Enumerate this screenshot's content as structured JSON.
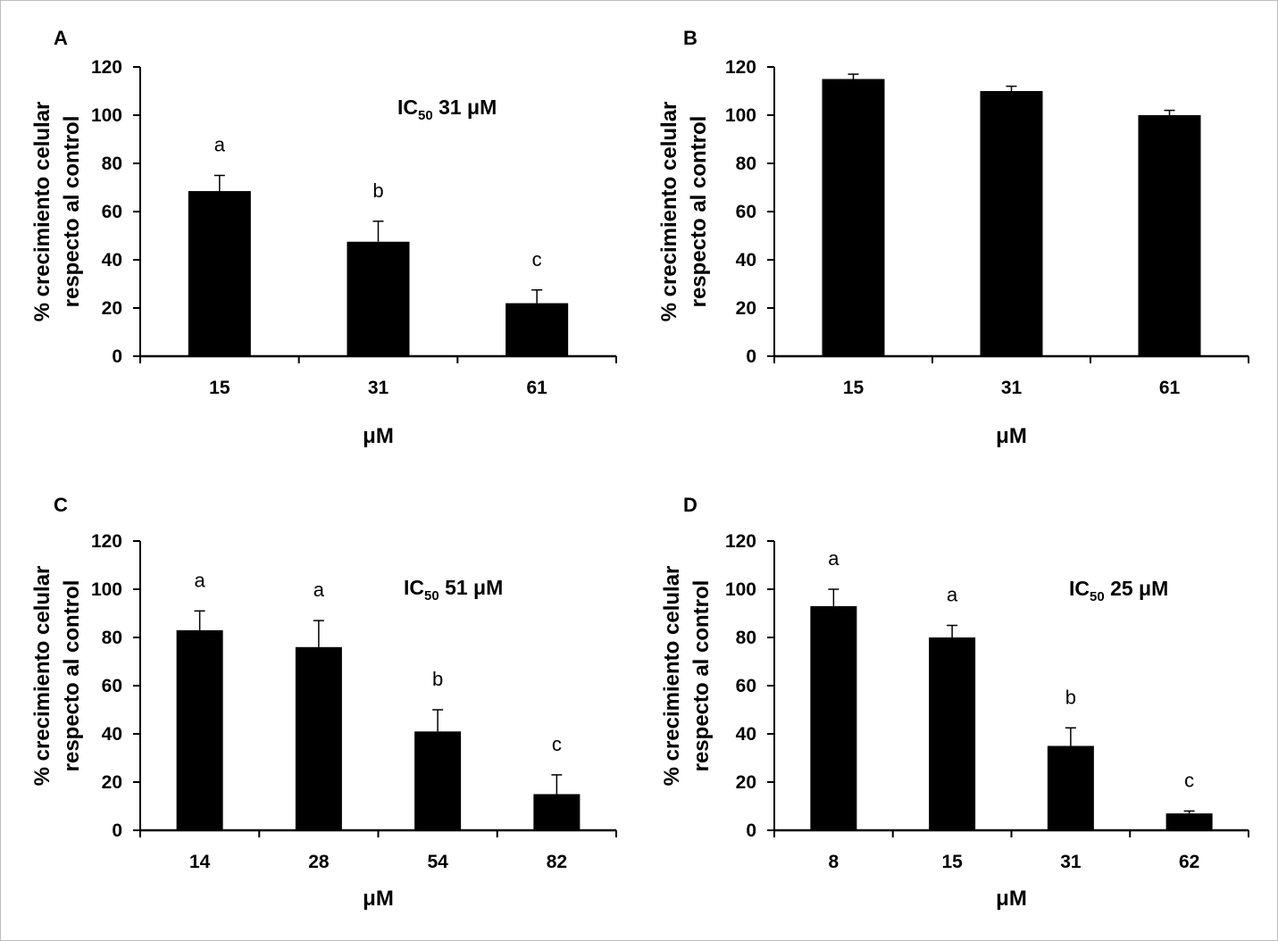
{
  "figure": {
    "colors": {
      "bar": "#000000",
      "axis": "#000000",
      "frame": "#bdbdbd"
    }
  },
  "chart_data": [
    {
      "panel": "A",
      "type": "bar",
      "ylabel_line1": "% crecimiento celular",
      "ylabel_line2": "respecto al control",
      "xlabel": "μM",
      "categories": [
        "15",
        "31",
        "61"
      ],
      "values": [
        68.5,
        47.5,
        22
      ],
      "errors": [
        6.5,
        8.5,
        5.5
      ],
      "sig_letters": [
        "a",
        "b",
        "c"
      ],
      "ic50": {
        "prefix": "IC",
        "sub": "50",
        "value": " 31 μM"
      },
      "ylim": [
        0,
        120
      ],
      "yticks": [
        "0",
        "20",
        "40",
        "60",
        "80",
        "100",
        "120"
      ]
    },
    {
      "panel": "B",
      "type": "bar",
      "ylabel_line1": "% crecimiento celular",
      "ylabel_line2": "respecto al control",
      "xlabel": "μM",
      "categories": [
        "15",
        "31",
        "61"
      ],
      "values": [
        115,
        110,
        100
      ],
      "errors": [
        2,
        2,
        2
      ],
      "sig_letters": [],
      "ylim": [
        0,
        120
      ],
      "yticks": [
        "0",
        "20",
        "40",
        "60",
        "80",
        "100",
        "120"
      ]
    },
    {
      "panel": "C",
      "type": "bar",
      "ylabel_line1": "% crecimiento celular",
      "ylabel_line2": "respecto al control",
      "xlabel": "μM",
      "categories": [
        "14",
        "28",
        "54",
        "82"
      ],
      "values": [
        83,
        76,
        41,
        15
      ],
      "errors": [
        8,
        11,
        9,
        8
      ],
      "sig_letters": [
        "a",
        "a",
        "b",
        "c"
      ],
      "ic50": {
        "prefix": "IC",
        "sub": "50",
        "value": " 51 μM"
      },
      "ylim": [
        0,
        120
      ],
      "yticks": [
        "0",
        "20",
        "40",
        "60",
        "80",
        "100",
        "120"
      ]
    },
    {
      "panel": "D",
      "type": "bar",
      "ylabel_line1": "% crecimiento celular",
      "ylabel_line2": "respecto al control",
      "xlabel": "μM",
      "categories": [
        "8",
        "15",
        "31",
        "62"
      ],
      "values": [
        93,
        80,
        35,
        7
      ],
      "errors": [
        7,
        5,
        7.5,
        1
      ],
      "sig_letters": [
        "a",
        "a",
        "b",
        "c"
      ],
      "ic50": {
        "prefix": "IC",
        "sub": "50",
        "value": " 25 μM"
      },
      "ylim": [
        0,
        120
      ],
      "yticks": [
        "0",
        "20",
        "40",
        "60",
        "80",
        "100",
        "120"
      ]
    }
  ]
}
